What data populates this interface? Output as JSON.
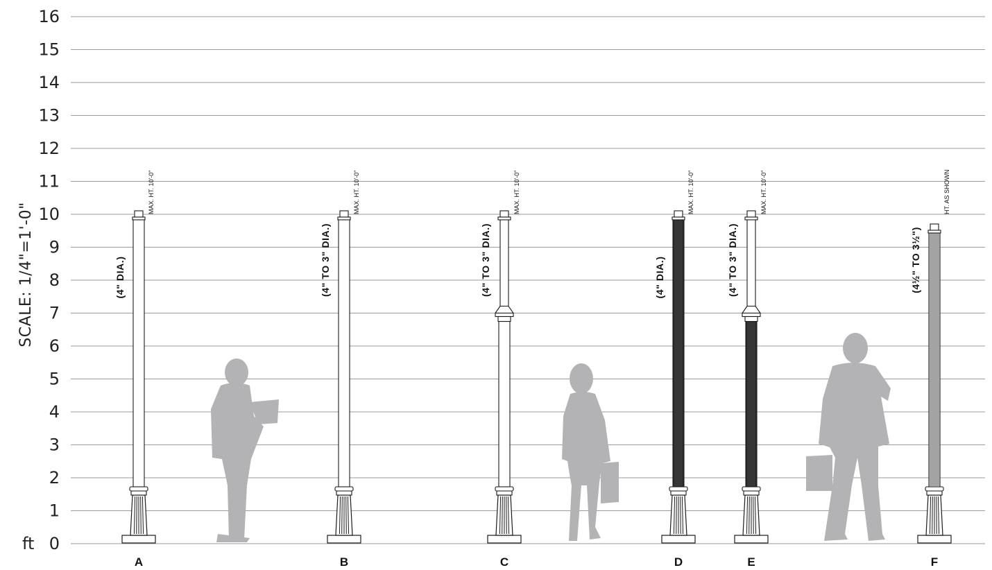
{
  "diagram": {
    "scale_label": "SCALE:  1/4\"=1'-0\"",
    "unit_label": "ft",
    "y_ticks": [
      "0",
      "1",
      "2",
      "3",
      "4",
      "5",
      "6",
      "7",
      "8",
      "9",
      "10",
      "11",
      "12",
      "13",
      "14",
      "15",
      "16"
    ],
    "posts": [
      {
        "letter": "A",
        "dia": "(4\" DIA.)",
        "height_note": "MAX. HT.  10'-0\"",
        "style": "smooth",
        "height_ft": 10
      },
      {
        "letter": "B",
        "dia": "(4\" TO 3\" DIA.)",
        "height_note": "MAX. HT.  10'-0\"",
        "style": "smooth",
        "height_ft": 10
      },
      {
        "letter": "C",
        "dia": "(4\" TO 3\" DIA.)",
        "height_note": "MAX. HT.  10'-0\"",
        "style": "collar",
        "height_ft": 10
      },
      {
        "letter": "D",
        "dia": "(4\" DIA.)",
        "height_note": "MAX. HT.  10'-0\"",
        "style": "fluted-dark",
        "height_ft": 10
      },
      {
        "letter": "E",
        "dia": "(4\" TO 3\" DIA.)",
        "height_note": "MAX. HT.  10'-0\"",
        "style": "collar-fluted",
        "height_ft": 10
      },
      {
        "letter": "F",
        "dia": "(4½\" TO 3½\")",
        "height_note": "HT.  AS SHOWN",
        "style": "fluted-light",
        "height_ft": 9.6
      }
    ],
    "colors": {
      "grid": "#9a9a9a",
      "silhouette": "#b3b3b5",
      "ink": "#1a1a1a"
    },
    "silhouettes": [
      "person-reading",
      "woman-with-bag",
      "man-on-phone"
    ]
  }
}
